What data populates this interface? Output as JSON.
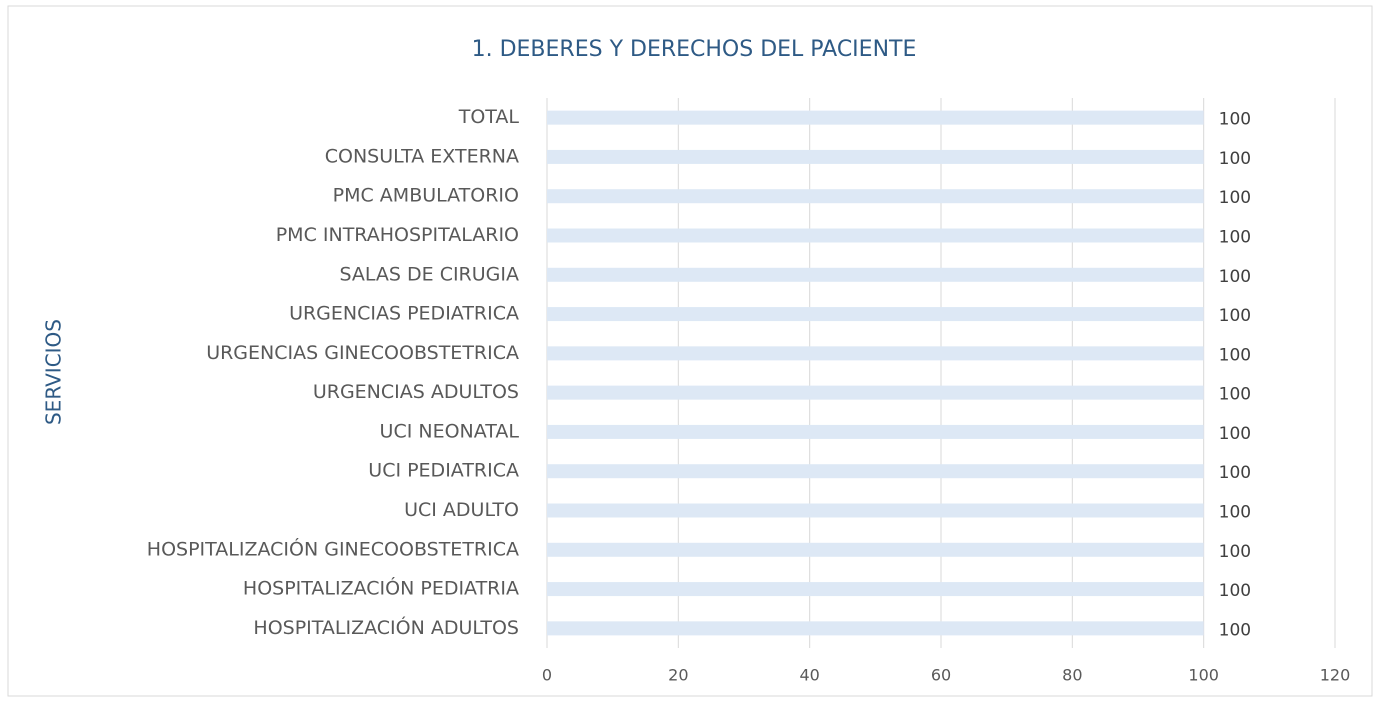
{
  "chart_data": {
    "type": "bar",
    "orientation": "horizontal",
    "title": "1. DEBERES Y DERECHOS DEL PACIENTE",
    "y_label": "SERVICIOS",
    "categories": [
      "TOTAL",
      "CONSULTA EXTERNA",
      "PMC AMBULATORIO",
      "PMC INTRAHOSPITALARIO",
      "SALAS DE CIRUGIA",
      "URGENCIAS PEDIATRICA",
      "URGENCIAS GINECOOBSTETRICA",
      "URGENCIAS ADULTOS",
      "UCI NEONATAL",
      "UCI PEDIATRICA",
      "UCI ADULTO",
      "HOSPITALIZACIÓN GINECOOBSTETRICA",
      "HOSPITALIZACIÓN PEDIATRIA",
      "HOSPITALIZACIÓN ADULTOS"
    ],
    "values": [
      100,
      100,
      100,
      100,
      100,
      100,
      100,
      100,
      100,
      100,
      100,
      100,
      100,
      100
    ],
    "color": "#dde8f5",
    "xlim": [
      0,
      120
    ],
    "xticks": [
      0,
      20,
      40,
      60,
      80,
      100,
      120
    ],
    "grid": true
  }
}
